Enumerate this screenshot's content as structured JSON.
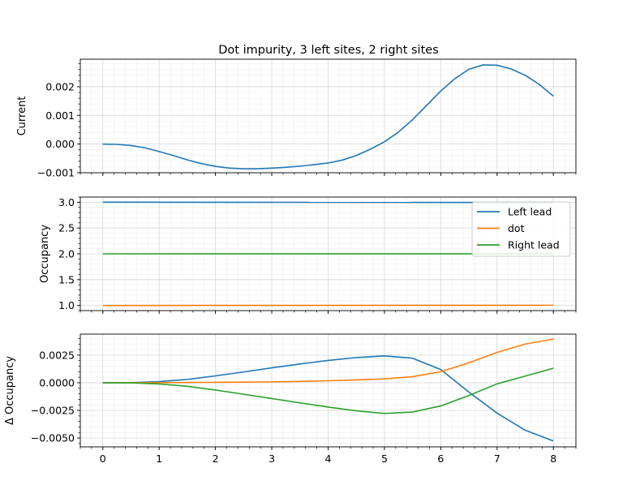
{
  "figure_title": "Dot impurity, 3 left sites, 2 right sites",
  "colors": {
    "left_lead": "#1f77b4",
    "dot": "#ff7f0e",
    "right_lead": "#2ca02c",
    "grid_major": "#d9d9d9",
    "grid_minor": "#f0f0f0",
    "axes": "#000000"
  },
  "chart_data": [
    {
      "type": "line",
      "title": "Dot impurity, 3 left sites, 2 right sites",
      "xlabel": "",
      "ylabel": "Current",
      "xlim": [
        -0.4,
        8.4
      ],
      "ylim": [
        -0.001,
        0.00296
      ],
      "xticks": [
        0,
        1,
        2,
        3,
        4,
        5,
        6,
        7,
        8
      ],
      "xtick_labels_shown": false,
      "yticks": [
        -0.001,
        0,
        0.001,
        0.002
      ],
      "ytick_labels": [
        "−0.001",
        "0.000",
        "0.001",
        "0.002"
      ],
      "grid": true,
      "legend": null,
      "x": [
        0,
        0.25,
        0.5,
        0.75,
        1,
        1.25,
        1.5,
        1.75,
        2,
        2.25,
        2.5,
        2.75,
        3,
        3.25,
        3.5,
        3.75,
        4,
        4.25,
        4.5,
        4.75,
        5,
        5.25,
        5.5,
        5.75,
        6,
        6.25,
        6.5,
        6.75,
        7,
        7.25,
        7.5,
        7.75,
        8
      ],
      "series": [
        {
          "name": "Left lead",
          "color": "#1f77b4",
          "values": [
            0.0,
            -1e-05,
            -5e-05,
            -0.00013,
            -0.00026,
            -0.0004,
            -0.00055,
            -0.00068,
            -0.00078,
            -0.00084,
            -0.00086,
            -0.00086,
            -0.00084,
            -0.00081,
            -0.00077,
            -0.00072,
            -0.00066,
            -0.00056,
            -0.0004,
            -0.00018,
            8e-05,
            0.00042,
            0.00085,
            0.00135,
            0.00185,
            0.00228,
            0.00261,
            0.00276,
            0.00275,
            0.00262,
            0.0024,
            0.00208,
            0.00167
          ]
        }
      ]
    },
    {
      "type": "line",
      "xlabel": "",
      "ylabel": "Occupancy",
      "xlim": [
        -0.4,
        8.4
      ],
      "ylim": [
        0.9,
        3.1
      ],
      "xticks": [
        0,
        1,
        2,
        3,
        4,
        5,
        6,
        7,
        8
      ],
      "xtick_labels_shown": false,
      "yticks": [
        1.0,
        1.5,
        2.0,
        2.5,
        3.0
      ],
      "ytick_labels": [
        "1.0",
        "1.5",
        "2.0",
        "2.5",
        "3.0"
      ],
      "grid": true,
      "legend": "upper right",
      "x": [
        0,
        8
      ],
      "series": [
        {
          "name": "Left lead",
          "color": "#1f77b4",
          "values": [
            3.0,
            2.995
          ]
        },
        {
          "name": "dot",
          "color": "#ff7f0e",
          "values": [
            1.0,
            1.004
          ]
        },
        {
          "name": "Right lead",
          "color": "#2ca02c",
          "values": [
            2.0,
            2.001
          ]
        }
      ]
    },
    {
      "type": "line",
      "xlabel": "",
      "ylabel": "Δ Occupancy",
      "xlim": [
        -0.4,
        8.4
      ],
      "ylim": [
        -0.0058,
        0.0044
      ],
      "xticks": [
        0,
        1,
        2,
        3,
        4,
        5,
        6,
        7,
        8
      ],
      "xtick_labels": [
        "0",
        "1",
        "2",
        "3",
        "4",
        "5",
        "6",
        "7",
        "8"
      ],
      "yticks": [
        -0.005,
        -0.0025,
        0,
        0.0025
      ],
      "ytick_labels": [
        "−0.0050",
        "−0.0025",
        "0.0000",
        "0.0025"
      ],
      "grid": true,
      "legend": null,
      "x": [
        0,
        0.5,
        1,
        1.5,
        2,
        2.5,
        3,
        3.5,
        4,
        4.5,
        5,
        5.5,
        6,
        6.5,
        7,
        7.5,
        8
      ],
      "series": [
        {
          "name": "Left lead",
          "color": "#1f77b4",
          "values": [
            0.0,
            1e-05,
            0.0001,
            0.0003,
            0.00062,
            0.00098,
            0.00135,
            0.0017,
            0.00202,
            0.00228,
            0.00243,
            0.00222,
            0.0012,
            -0.00085,
            -0.00275,
            -0.0043,
            -0.00527
          ]
        },
        {
          "name": "dot",
          "color": "#ff7f0e",
          "values": [
            0.0,
            0.0,
            1e-05,
            2e-05,
            4e-05,
            6e-05,
            8e-05,
            0.00012,
            0.00018,
            0.00026,
            0.00035,
            0.00055,
            0.001,
            0.0018,
            0.00275,
            0.0035,
            0.00395
          ]
        },
        {
          "name": "Right lead",
          "color": "#2ca02c",
          "values": [
            0.0,
            -1e-05,
            -0.00011,
            -0.00032,
            -0.00066,
            -0.00104,
            -0.00143,
            -0.00182,
            -0.0022,
            -0.00254,
            -0.00278,
            -0.00265,
            -0.0021,
            -0.00115,
            -0.0001,
            0.0006,
            0.00132
          ]
        }
      ]
    }
  ]
}
